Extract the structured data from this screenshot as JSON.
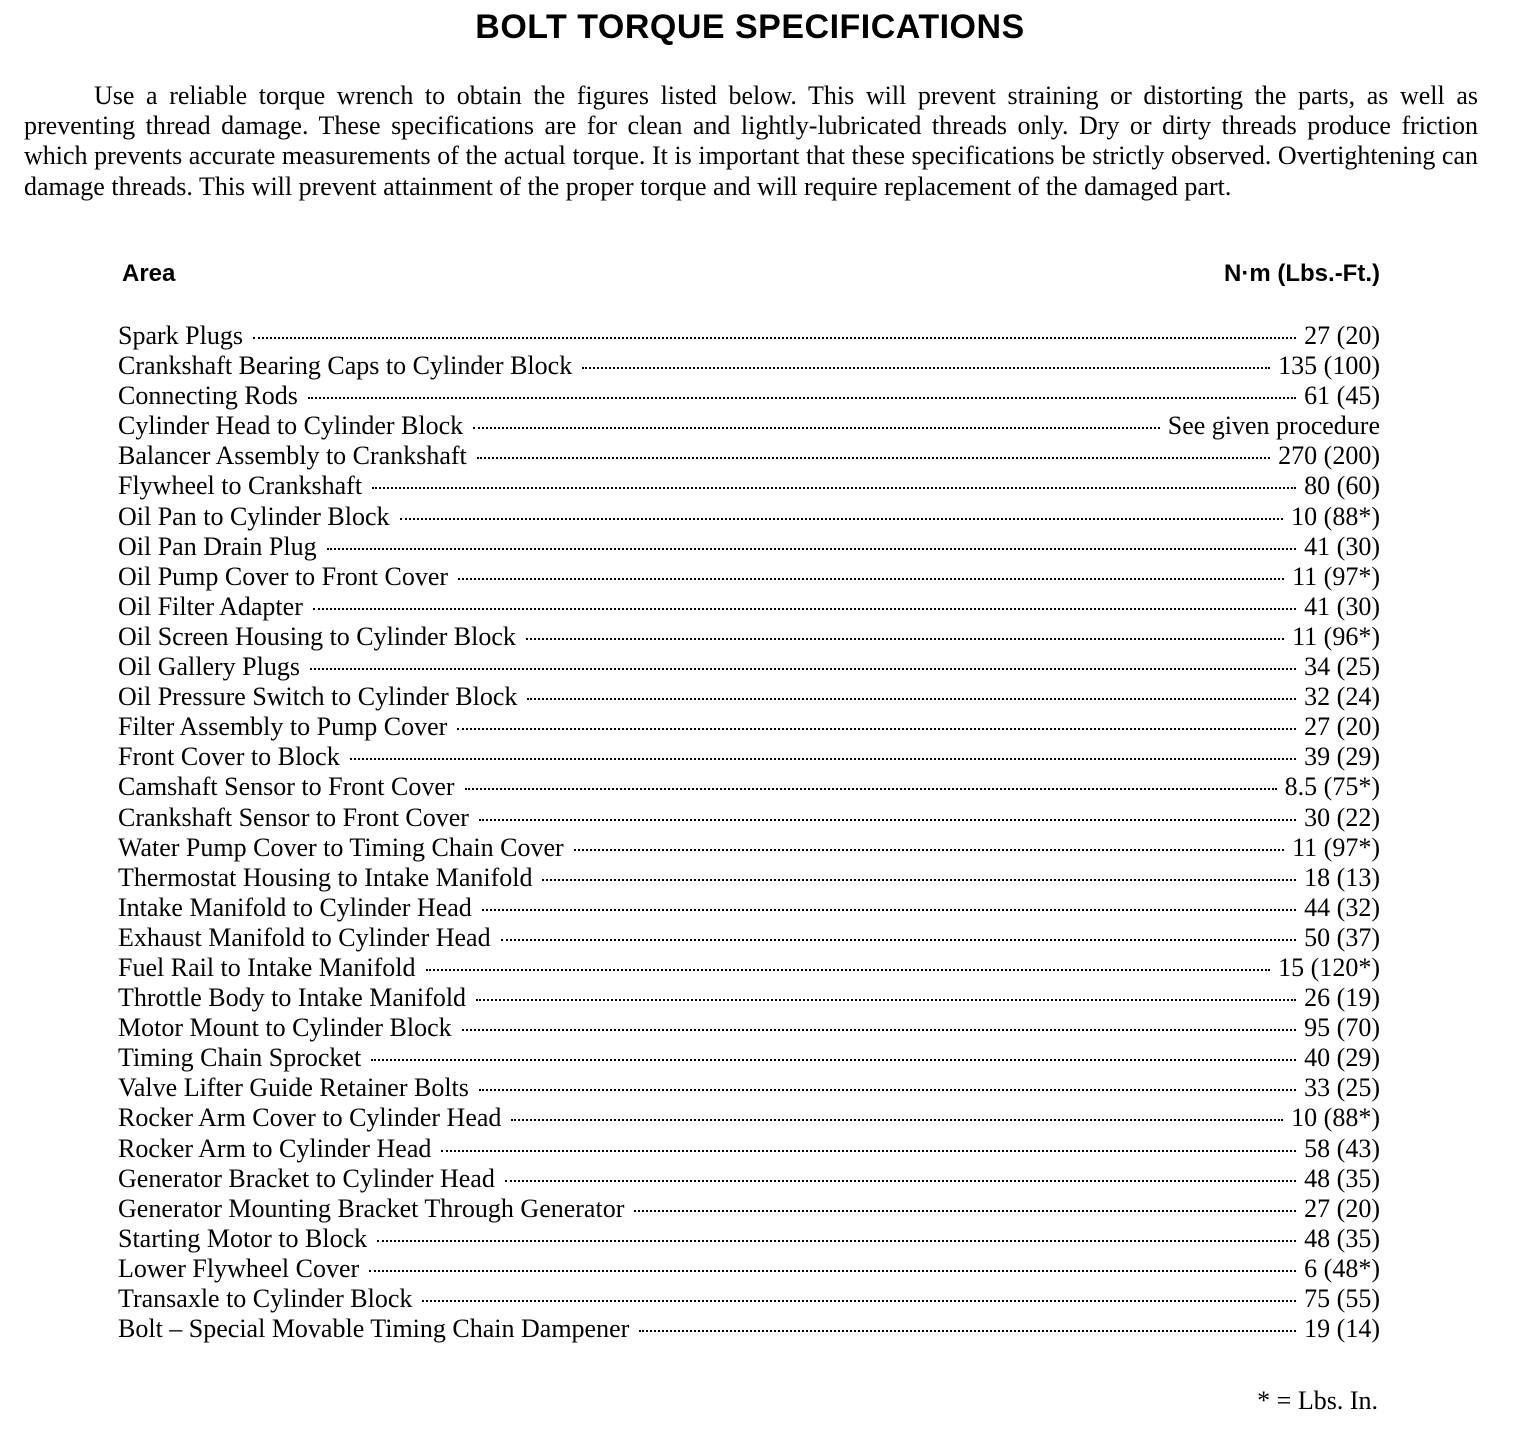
{
  "title": "BOLT TORQUE SPECIFICATIONS",
  "intro": "Use a reliable torque wrench to obtain the figures listed below. This will prevent straining or distorting the parts, as well as preventing thread damage. These specifications are for clean and lightly-lubricated threads only. Dry or dirty threads produce friction which prevents accurate measurements of the actual torque. It is important that these specifications be strictly observed. Overtightening can damage threads. This will prevent attainment of the proper torque and will require replacement of the damaged part.",
  "table": {
    "headers": {
      "area": "Area",
      "unit": "N·m (Lbs.-Ft.)"
    },
    "rows": [
      {
        "area": "Spark Plugs",
        "value": "27 (20)"
      },
      {
        "area": "Crankshaft Bearing Caps to Cylinder Block",
        "value": "135 (100)"
      },
      {
        "area": "Connecting Rods",
        "value": "61 (45)"
      },
      {
        "area": "Cylinder Head to Cylinder Block",
        "value": "See given procedure"
      },
      {
        "area": "Balancer Assembly to Crankshaft",
        "value": "270 (200)"
      },
      {
        "area": "Flywheel to Crankshaft",
        "value": "80 (60)"
      },
      {
        "area": "Oil Pan to Cylinder Block",
        "value": "10 (88*)"
      },
      {
        "area": "Oil Pan Drain Plug",
        "value": "41 (30)"
      },
      {
        "area": "Oil Pump Cover to Front Cover",
        "value": "11 (97*)"
      },
      {
        "area": "Oil Filter Adapter",
        "value": "41 (30)"
      },
      {
        "area": "Oil Screen Housing to Cylinder Block",
        "value": "11 (96*)"
      },
      {
        "area": "Oil Gallery Plugs",
        "value": "34 (25)"
      },
      {
        "area": "Oil Pressure Switch to Cylinder Block",
        "value": "32 (24)"
      },
      {
        "area": "Filter Assembly to Pump Cover",
        "value": "27 (20)"
      },
      {
        "area": "Front Cover to Block",
        "value": "39 (29)"
      },
      {
        "area": "Camshaft Sensor to Front Cover",
        "value": "8.5 (75*)"
      },
      {
        "area": "Crankshaft Sensor to Front Cover",
        "value": "30 (22)"
      },
      {
        "area": "Water Pump Cover to Timing Chain Cover",
        "value": "11 (97*)"
      },
      {
        "area": "Thermostat Housing to Intake Manifold",
        "value": "18 (13)"
      },
      {
        "area": "Intake Manifold to Cylinder Head",
        "value": "44 (32)"
      },
      {
        "area": "Exhaust Manifold to Cylinder Head",
        "value": "50 (37)"
      },
      {
        "area": "Fuel Rail to Intake Manifold",
        "value": "15 (120*)"
      },
      {
        "area": "Throttle Body to Intake Manifold",
        "value": "26 (19)"
      },
      {
        "area": "Motor Mount to Cylinder Block",
        "value": "95 (70)"
      },
      {
        "area": "Timing Chain Sprocket",
        "value": "40 (29)"
      },
      {
        "area": "Valve Lifter Guide Retainer Bolts",
        "value": "33 (25)"
      },
      {
        "area": "Rocker Arm Cover to Cylinder Head",
        "value": "10 (88*)"
      },
      {
        "area": "Rocker Arm to Cylinder Head",
        "value": "58 (43)"
      },
      {
        "area": "Generator Bracket to Cylinder Head",
        "value": "48 (35)"
      },
      {
        "area": "Generator Mounting Bracket Through Generator",
        "value": "27 (20)"
      },
      {
        "area": "Starting Motor to Block",
        "value": "48 (35)"
      },
      {
        "area": "Lower Flywheel Cover",
        "value": "6 (48*)"
      },
      {
        "area": "Transaxle to Cylinder Block",
        "value": "75 (55)"
      },
      {
        "area": "Bolt – Special Movable Timing Chain Dampener",
        "value": "19 (14)"
      }
    ]
  },
  "footnote": "* = Lbs. In."
}
